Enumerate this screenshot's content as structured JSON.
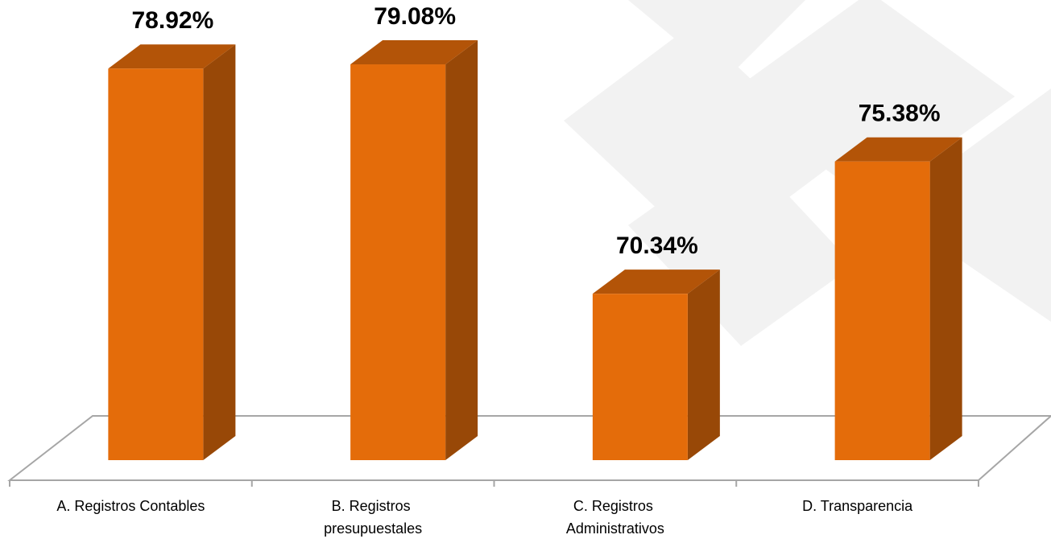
{
  "chart_data": {
    "type": "bar3d",
    "categories": [
      "A. Registros Contables",
      "B. Registros presupuestales",
      "C. Registros Administrativos",
      "D. Transparencia"
    ],
    "values": [
      78.92,
      79.08,
      70.34,
      75.38
    ],
    "value_labels": [
      "78.92%",
      "79.08%",
      "70.34%",
      "75.38%"
    ],
    "color": "#e46c0a",
    "ylim": [
      64,
      80
    ]
  }
}
